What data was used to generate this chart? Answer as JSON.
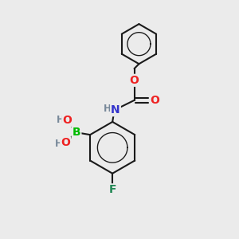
{
  "bg_color": "#ebebeb",
  "bond_color": "#1a1a1a",
  "bond_width": 1.5,
  "atom_colors": {
    "B": "#00bb00",
    "O": "#ee2222",
    "N": "#3333cc",
    "F": "#228855",
    "H": "#778899",
    "C": "#1a1a1a"
  },
  "font_size_atom": 10,
  "font_size_H": 8.5
}
